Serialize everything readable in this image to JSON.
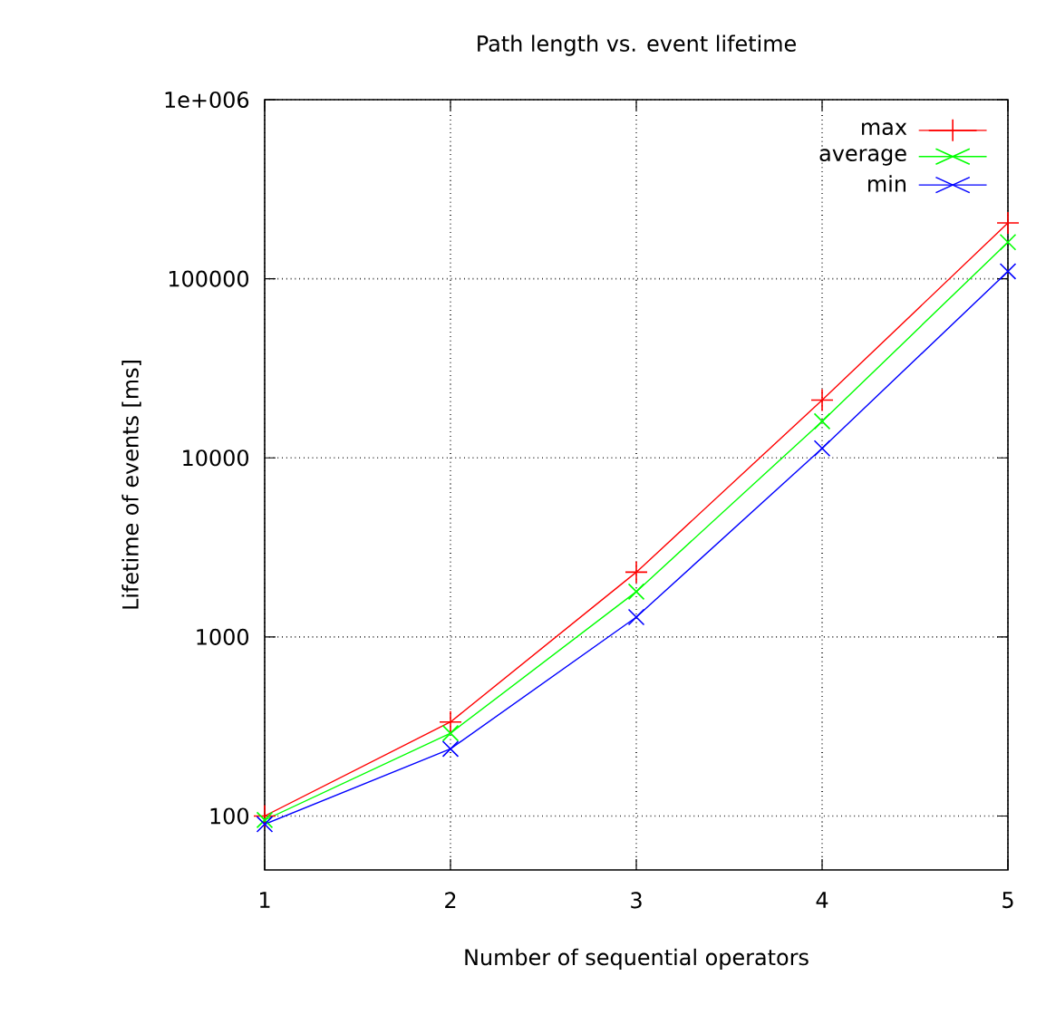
{
  "chart_data": {
    "type": "line",
    "title": "Path length vs. event lifetime",
    "xlabel": "Number of sequential operators",
    "ylabel": "Lifetime of events [ms]",
    "x": [
      1,
      2,
      3,
      4,
      5
    ],
    "series": [
      {
        "name": "max",
        "color": "#ff0000",
        "marker": "plus",
        "values": [
          100,
          335,
          2300,
          21000,
          205000
        ]
      },
      {
        "name": "average",
        "color": "#00ff00",
        "marker": "cross",
        "values": [
          95,
          290,
          1790,
          16000,
          160000
        ]
      },
      {
        "name": "min",
        "color": "#0000ff",
        "marker": "cross",
        "values": [
          90,
          237,
          1290,
          11300,
          110000
        ]
      }
    ],
    "xlim": [
      1,
      5
    ],
    "xticks": [
      1,
      2,
      3,
      4,
      5
    ],
    "ylim": [
      50,
      1000000
    ],
    "yticks": [
      100,
      1000,
      10000,
      100000,
      {
        "value": 1000000,
        "label": "1e+006"
      }
    ],
    "log": "y",
    "grid": true,
    "legend": "top right",
    "line_style": "solid"
  }
}
